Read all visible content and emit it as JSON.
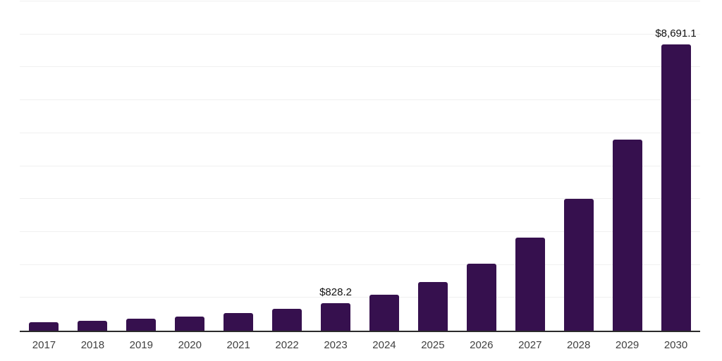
{
  "chart_data": {
    "type": "bar",
    "title": "",
    "xlabel": "",
    "ylabel": "",
    "categories": [
      "2017",
      "2018",
      "2019",
      "2020",
      "2021",
      "2022",
      "2023",
      "2024",
      "2025",
      "2026",
      "2027",
      "2028",
      "2029",
      "2030"
    ],
    "values": [
      255,
      295,
      370,
      434,
      540,
      655,
      828.2,
      1100,
      1485,
      2040,
      2825,
      4000,
      5810,
      8691.1
    ],
    "ylim": [
      0,
      10000
    ],
    "grid_step": 1000,
    "grid": "horizontal-only",
    "legend": "none",
    "y_tick_labels_visible": false,
    "data_labels": [
      {
        "category": "2023",
        "text": "$828.2"
      },
      {
        "category": "2030",
        "text": "$8,691.1"
      }
    ],
    "colors": {
      "bar": "#36104e",
      "axis_line": "#2b2b2b",
      "gridline": "#f0f0f0",
      "tick_label": "#404040",
      "data_label": "#111111",
      "background": "#ffffff"
    }
  }
}
